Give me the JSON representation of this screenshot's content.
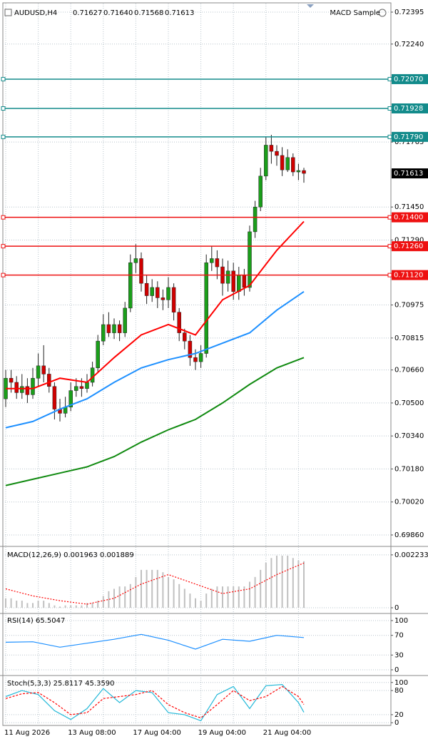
{
  "chart_data": [
    {
      "type": "candlestick",
      "title": "AUDUSD,H4",
      "header_values": [
        "0.71627",
        "0.71640",
        "0.71568",
        "0.71613"
      ],
      "badge": "MACD Sample",
      "categories": [
        "11 Aug 2026",
        null,
        null,
        null,
        null,
        null,
        null,
        null,
        null,
        null,
        null,
        null,
        "13 Aug 08:00",
        null,
        null,
        null,
        null,
        null,
        null,
        null,
        null,
        null,
        null,
        null,
        "17 Aug 04:00",
        null,
        null,
        null,
        null,
        null,
        null,
        null,
        null,
        null,
        null,
        null,
        "19 Aug 04:00",
        null,
        null,
        null,
        null,
        null,
        null,
        null,
        null,
        null,
        null,
        null,
        "21 Aug 04:00",
        null,
        null,
        null,
        null,
        null,
        null,
        null
      ],
      "open": [
        0.7052,
        0.7062,
        0.706,
        0.7055,
        0.7058,
        0.7054,
        0.7062,
        0.7068,
        0.7064,
        0.7058,
        0.7047,
        0.7045,
        0.7048,
        0.7056,
        0.7058,
        0.7057,
        0.706,
        0.7067,
        0.708,
        0.7088,
        0.7084,
        0.7088,
        0.7084,
        0.7096,
        0.7118,
        0.712,
        0.7108,
        0.7102,
        0.7106,
        0.7101,
        0.71,
        0.7106,
        0.7094,
        0.7084,
        0.708,
        0.7072,
        0.707,
        0.7074,
        0.7118,
        0.712,
        0.7116,
        0.7108,
        0.7114,
        0.7104,
        0.7112,
        0.7106,
        0.7133,
        0.7145,
        0.716,
        0.7175,
        0.7172,
        0.717,
        0.7163,
        0.7169,
        0.7162,
        0.71627
      ],
      "high": [
        0.7066,
        0.7066,
        0.7063,
        0.7064,
        0.7062,
        0.7067,
        0.7074,
        0.7078,
        0.7067,
        0.706,
        0.7052,
        0.7053,
        0.706,
        0.7062,
        0.7062,
        0.7064,
        0.707,
        0.7083,
        0.7093,
        0.7094,
        0.7091,
        0.709,
        0.7099,
        0.7122,
        0.7127,
        0.7123,
        0.7112,
        0.711,
        0.7109,
        0.7105,
        0.7111,
        0.7108,
        0.7096,
        0.7086,
        0.7083,
        0.7076,
        0.7078,
        0.7122,
        0.7126,
        0.7124,
        0.712,
        0.7119,
        0.7118,
        0.7116,
        0.7115,
        0.7136,
        0.7148,
        0.7164,
        0.7179,
        0.718,
        0.7175,
        0.7174,
        0.7173,
        0.7171,
        0.7166,
        0.7164
      ],
      "low": [
        0.7048,
        0.7055,
        0.7052,
        0.7052,
        0.705,
        0.7052,
        0.7058,
        0.706,
        0.7055,
        0.7042,
        0.7041,
        0.7043,
        0.7046,
        0.7053,
        0.7053,
        0.7055,
        0.7058,
        0.7065,
        0.7078,
        0.7082,
        0.7081,
        0.708,
        0.7082,
        0.7094,
        0.7113,
        0.7104,
        0.7098,
        0.7099,
        0.7096,
        0.7095,
        0.7096,
        0.709,
        0.708,
        0.7076,
        0.7068,
        0.7066,
        0.7067,
        0.7072,
        0.7114,
        0.711,
        0.7102,
        0.7104,
        0.71,
        0.71,
        0.7102,
        0.7104,
        0.713,
        0.7143,
        0.7158,
        0.7166,
        0.7165,
        0.716,
        0.7162,
        0.716,
        0.7158,
        0.71568
      ],
      "close": [
        0.7062,
        0.706,
        0.7055,
        0.7058,
        0.7054,
        0.7062,
        0.7068,
        0.7064,
        0.7058,
        0.7047,
        0.7045,
        0.7048,
        0.7056,
        0.7058,
        0.7057,
        0.706,
        0.7067,
        0.708,
        0.7088,
        0.7084,
        0.7088,
        0.7084,
        0.7096,
        0.7118,
        0.712,
        0.7108,
        0.7102,
        0.7106,
        0.7101,
        0.71,
        0.7106,
        0.7094,
        0.7084,
        0.708,
        0.7072,
        0.707,
        0.7074,
        0.7118,
        0.712,
        0.7116,
        0.7108,
        0.7114,
        0.7104,
        0.7112,
        0.7106,
        0.7133,
        0.7145,
        0.716,
        0.7175,
        0.7172,
        0.717,
        0.7163,
        0.7169,
        0.7162,
        0.71627,
        0.71613
      ],
      "up_color": "#1a9e1a",
      "down_color": "#d00000",
      "lines": [
        {
          "color": "#ff0000",
          "x": [
            0,
            5,
            10,
            15,
            20,
            25,
            30,
            35,
            40,
            45,
            50,
            55
          ],
          "values": [
            0.7057,
            0.7057,
            0.7062,
            0.706,
            0.7072,
            0.7083,
            0.7088,
            0.7083,
            0.71,
            0.7107,
            0.7124,
            0.7138
          ]
        },
        {
          "color": "#1e90ff",
          "x": [
            0,
            5,
            10,
            15,
            20,
            25,
            30,
            35,
            40,
            45,
            50,
            55
          ],
          "values": [
            0.7038,
            0.7041,
            0.7047,
            0.7052,
            0.706,
            0.7067,
            0.7071,
            0.7074,
            0.7079,
            0.7084,
            0.7095,
            0.7104
          ]
        },
        {
          "color": "#108a10",
          "x": [
            0,
            5,
            10,
            15,
            20,
            25,
            30,
            35,
            40,
            45,
            50,
            55
          ],
          "values": [
            0.701,
            0.7013,
            0.7016,
            0.7019,
            0.7024,
            0.7031,
            0.7037,
            0.7042,
            0.705,
            0.7059,
            0.7067,
            0.7072
          ]
        }
      ],
      "levels": [
        {
          "value": 0.7207,
          "label": "0.72070",
          "color": "#138b8b"
        },
        {
          "value": 0.71928,
          "label": "0.71928",
          "color": "#138b8b"
        },
        {
          "value": 0.7179,
          "label": "0.71790",
          "color": "#138b8b"
        },
        {
          "value": 0.714,
          "label": "0.71400",
          "color": "#ee1111"
        },
        {
          "value": 0.7126,
          "label": "0.71260",
          "color": "#ee1111"
        },
        {
          "value": 0.7112,
          "label": "0.71120",
          "color": "#ee1111"
        }
      ],
      "last_price": {
        "value": 0.71613,
        "label": "0.71613"
      },
      "ylim": [
        0.69808,
        0.72426
      ],
      "yticks": [
        {
          "value": 0.72395,
          "label": "0.72395"
        },
        {
          "value": 0.7224,
          "label": "0.72240"
        },
        {
          "value": 0.71765,
          "label": "0.71765"
        },
        {
          "value": 0.7145,
          "label": "0.71450"
        },
        {
          "value": 0.7129,
          "label": "0.71290"
        },
        {
          "value": 0.70975,
          "label": "0.70975"
        },
        {
          "value": 0.70815,
          "label": "0.70815"
        },
        {
          "value": 0.7066,
          "label": "0.70660"
        },
        {
          "value": 0.705,
          "label": "0.70500"
        },
        {
          "value": 0.7034,
          "label": "0.70340"
        },
        {
          "value": 0.7018,
          "label": "0.70180"
        },
        {
          "value": 0.7002,
          "label": "0.70020"
        },
        {
          "value": 0.6986,
          "label": "0.69860"
        }
      ],
      "grid": true
    },
    {
      "type": "histogram",
      "title": "MACD(12,26,9) 0.001963 0.001889",
      "color": "#c0c0c0",
      "values": [
        0.0004,
        0.0004,
        0.0003,
        0.0003,
        0.0002,
        0.0002,
        0.0003,
        0.0003,
        0.0002,
        0.0001,
        5e-05,
        0.0001,
        0.0001,
        0.0001,
        0.0001,
        0.0002,
        0.0002,
        0.0003,
        0.0005,
        0.0007,
        0.0008,
        0.0009,
        0.0009,
        0.001,
        0.0013,
        0.0016,
        0.0016,
        0.0016,
        0.0016,
        0.0015,
        0.0013,
        0.0012,
        0.001,
        0.0008,
        0.0006,
        0.0004,
        0.0003,
        0.0006,
        0.0008,
        0.0009,
        0.0009,
        0.0009,
        0.0009,
        0.0009,
        0.0009,
        0.0011,
        0.0013,
        0.0016,
        0.0019,
        0.0021,
        0.0022,
        0.0022,
        0.0022,
        0.0021,
        0.002,
        0.001963
      ],
      "lines": [
        {
          "color": "#ff0000",
          "dash": "2,2",
          "x": [
            0,
            5,
            10,
            15,
            20,
            25,
            30,
            35,
            40,
            45,
            50,
            55
          ],
          "values": [
            0.0008,
            0.0005,
            0.0003,
            0.00015,
            0.0004,
            0.001,
            0.0014,
            0.001,
            0.0006,
            0.0008,
            0.0014,
            0.001889
          ]
        }
      ],
      "ylim": [
        -0.00018,
        0.00247
      ],
      "yticks": [
        0.002233,
        0
      ],
      "grid": true
    },
    {
      "type": "line",
      "title": "RSI(14) 65.5047",
      "lines": [
        {
          "color": "#1e90ff",
          "x": [
            0,
            5,
            10,
            15,
            20,
            25,
            30,
            35,
            40,
            45,
            50,
            55
          ],
          "values": [
            56,
            57,
            46,
            54,
            62,
            72,
            60,
            42,
            62,
            58,
            70,
            65.5047
          ]
        }
      ],
      "ylim": [
        -8.7,
        111.6
      ],
      "yticks": [
        100,
        70,
        30,
        0
      ],
      "grid": true
    },
    {
      "type": "line",
      "title": "Stoch(5,3,3) 25.8117 45.3590",
      "lines": [
        {
          "color": "#22b8d8",
          "x": [
            0,
            3,
            6,
            9,
            12,
            15,
            18,
            21,
            24,
            27,
            30,
            33,
            36,
            39,
            42,
            45,
            48,
            51,
            54,
            55
          ],
          "values": [
            65,
            80,
            70,
            30,
            8,
            35,
            85,
            50,
            80,
            75,
            25,
            20,
            5,
            70,
            90,
            35,
            92,
            95,
            50,
            25.8117
          ]
        },
        {
          "color": "#ff0000",
          "dash": "3,2",
          "x": [
            0,
            3,
            6,
            9,
            12,
            15,
            18,
            21,
            24,
            27,
            30,
            33,
            36,
            39,
            42,
            45,
            48,
            51,
            54,
            55
          ],
          "values": [
            60,
            72,
            75,
            50,
            20,
            25,
            60,
            65,
            70,
            80,
            45,
            25,
            12,
            45,
            80,
            55,
            65,
            90,
            65,
            45.359
          ]
        }
      ],
      "ylim": [
        -5,
        112
      ],
      "yticks": [
        100,
        80,
        20,
        0
      ],
      "grid": true
    }
  ]
}
